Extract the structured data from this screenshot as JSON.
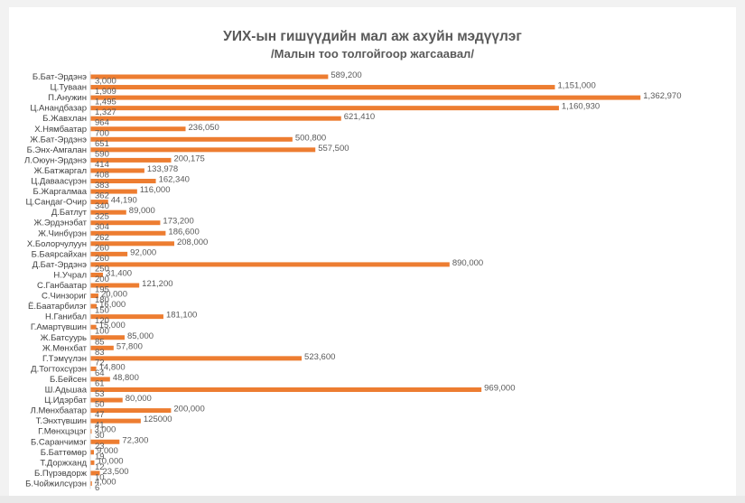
{
  "colors": {
    "bar": "#ed7d31",
    "text": "#595959",
    "background": "#ffffff"
  },
  "chart_data": {
    "type": "bar",
    "orientation": "horizontal",
    "title": "УИХ-ын гишүүдийн мал аж ахуйн мэдүүлэг",
    "subtitle": "/Малын тоо толгойгоор жагсаавал/",
    "categories": [
      "Б.Бат-Эрдэнэ",
      "Ц.Туваан",
      "П.Анужин",
      "Ц.Анандбазар",
      "Б.Жавхлан",
      "Х.Нямбаатар",
      "Ж.Бат-Эрдэнэ",
      "Б.Энх-Амгалан",
      "Л.Оюун-Эрдэнэ",
      "Ж.Батжаргал",
      "Ц.Даваасүрэн",
      "Б.Жаргалмаа",
      "Ц.Сандаг-Очир",
      "Д.Батлут",
      "Ж.Эрдэнэбат",
      "Ж.Чинбүрэн",
      "Х.Болорчулуун",
      "Б.Баярсайхан",
      "Д.Бат-Эрдэнэ",
      "Н.Учрал",
      "С.Ганбаатар",
      "С.Чинзориг",
      "Ё.Баатарбилэг",
      "Н.Ганибал",
      "Г.Амартүвшин",
      "Ж.Батсуурь",
      "Ж.Мөнхбат",
      "Г.Тэмүүлэн",
      "Д.Тогтохсүрэн",
      "Б.Бейсен",
      "Ш.Адьшаа",
      "Ц.Идэрбат",
      "Л.Мөнхбаатар",
      "Т.Энхтүвшин",
      "Г.Мөнхцэцэг",
      "Б.Саранчимэг",
      "Б.Баттөмөр",
      "Т.Доржханд",
      "Б.Пүрэвдорж",
      "Б.Чойжилсүрэн"
    ],
    "values": [
      589200,
      1151000,
      1362970,
      1160930,
      621410,
      236050,
      500800,
      557500,
      200175,
      133978,
      162340,
      116000,
      44190,
      89000,
      173200,
      186600,
      208000,
      92000,
      890000,
      31400,
      121200,
      20000,
      16000,
      181100,
      15000,
      85000,
      57800,
      523600,
      14800,
      48800,
      969000,
      80000,
      200000,
      125000,
      3000,
      72300,
      9000,
      10000,
      23500,
      4000
    ],
    "value_labels": [
      "589,200",
      "1,151,000",
      "1,362,970",
      "1,160,930",
      "621,410",
      "236,050",
      "500,800",
      "557,500",
      "200,175",
      "133,978",
      "162,340",
      "116,000",
      "44,190",
      "89,000",
      "173,200",
      "186,600",
      "208,000",
      "92,000",
      "890,000",
      "31,400",
      "121,200",
      "20,000",
      "16,000",
      "181,100",
      "15,000",
      "85,000",
      "57,800",
      "523,600",
      "14,800",
      "48,800",
      "969,000",
      "80,000",
      "200,000",
      "125000",
      "3,000",
      "72,300",
      "9,000",
      "10,000",
      "23,500",
      "4,000"
    ],
    "secondary_labels": [
      "3,000",
      "1,909",
      "1,495",
      "1,327",
      "964",
      "700",
      "651",
      "590",
      "414",
      "408",
      "383",
      "362",
      "340",
      "325",
      "304",
      "262",
      "260",
      "260",
      "250",
      "200",
      "195",
      "180",
      "150",
      "120",
      "100",
      "85",
      "83",
      "72",
      "64",
      "61",
      "53",
      "50",
      "47",
      "41",
      "30",
      "23",
      "19",
      "12",
      "10",
      "6"
    ],
    "xlim": [
      0,
      1400000
    ],
    "grid": false,
    "legend": "none"
  }
}
